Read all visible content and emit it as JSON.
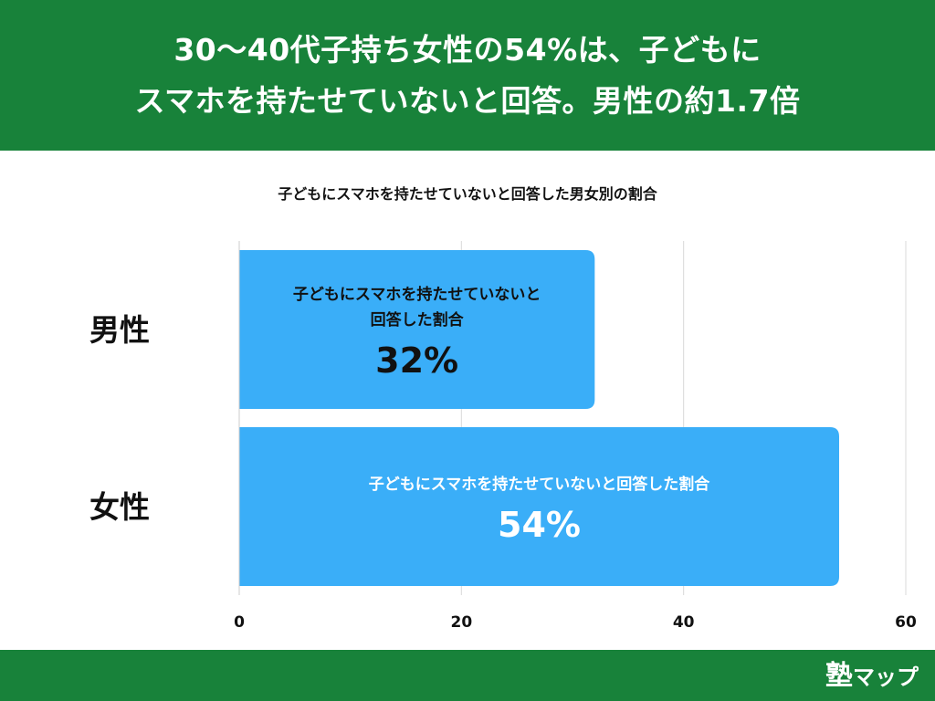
{
  "header": {
    "title_line1": "30〜40代子持ち女性の54%は、子どもに",
    "title_line2": "スマホを持たせていないと回答。男性の約1.7倍"
  },
  "footer": {
    "brand_mark": "塾",
    "brand_text": "マップ"
  },
  "colors": {
    "header_bg": "#18823a",
    "bar": "#3aaef8",
    "grid": "#d9d9d9"
  },
  "chart_data": {
    "type": "bar",
    "orientation": "horizontal",
    "title": "子どもにスマホを持たせていないと回答した男女別の割合",
    "categories": [
      "男性",
      "女性"
    ],
    "series": [
      {
        "values": [
          32,
          54
        ],
        "bar_labels": [
          [
            "子どもにスマホを持たせていないと",
            "回答した割合"
          ],
          [
            "子どもにスマホを持たせていないと回答した割合"
          ]
        ],
        "value_labels": [
          "32%",
          "54%"
        ]
      }
    ],
    "xlim": [
      0,
      60
    ],
    "xticks": [
      "0",
      "20",
      "40",
      "60"
    ],
    "grid": true,
    "legend": "none"
  }
}
